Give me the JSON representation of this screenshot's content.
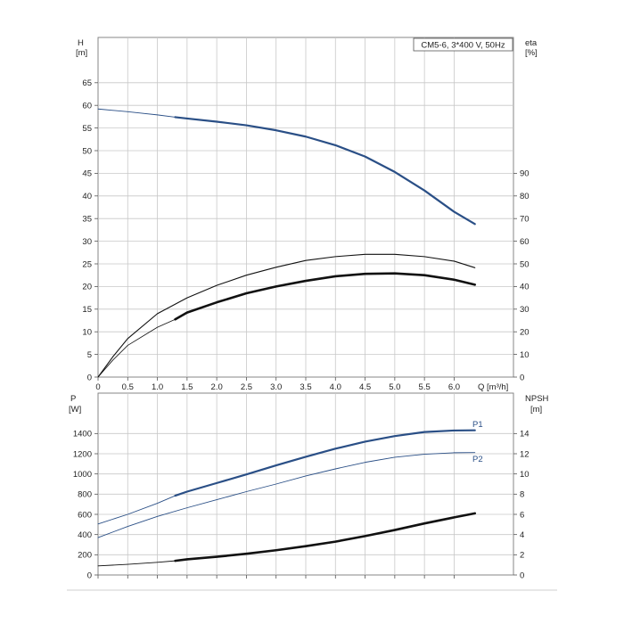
{
  "chart_data": [
    {
      "type": "line",
      "panel": "upper",
      "legend_title": "CM5-6, 3*400 V, 50Hz",
      "legend_position": "top-right",
      "grid": true,
      "x_axis": {
        "label": "Q [m³/h]",
        "range": [
          0,
          7.0
        ],
        "ticks": [
          0,
          0.5,
          1.0,
          1.5,
          2.0,
          2.5,
          3.0,
          3.5,
          4.0,
          4.5,
          5.0,
          5.5,
          6.0
        ],
        "tick_labels": [
          "0",
          "0.5",
          "1.0",
          "1.5",
          "2.0",
          "2.5",
          "3.0",
          "3.5",
          "4.0",
          "4.5",
          "5.0",
          "5.5",
          "6.0"
        ]
      },
      "y_left": {
        "name": "H",
        "unit": "[m]",
        "range": [
          0,
          75
        ],
        "ticks": [
          0,
          5,
          10,
          15,
          20,
          25,
          30,
          35,
          40,
          45,
          50,
          55,
          60,
          65
        ],
        "tick_labels": [
          "0",
          "5",
          "10",
          "15",
          "20",
          "25",
          "30",
          "35",
          "40",
          "45",
          "50",
          "55",
          "60",
          "65"
        ]
      },
      "y_right": {
        "name": "eta",
        "unit": "[%]",
        "range": [
          0,
          150
        ],
        "ticks": [
          0,
          10,
          20,
          30,
          40,
          50,
          60,
          70,
          80,
          90
        ],
        "tick_labels": [
          "0",
          "10",
          "20",
          "30",
          "40",
          "50",
          "60",
          "70",
          "80",
          "90"
        ]
      },
      "series": [
        {
          "axis": "left",
          "color": "#2a4f86",
          "width_thin": 0.9,
          "width_bold": 2.2,
          "bold_from": 1.3,
          "x": [
            0,
            0.5,
            1.0,
            1.3,
            1.5,
            2.0,
            2.5,
            3.0,
            3.5,
            4.0,
            4.5,
            5.0,
            5.5,
            6.0,
            6.35
          ],
          "y": [
            59.2,
            58.6,
            57.9,
            57.4,
            57.1,
            56.4,
            55.6,
            54.5,
            53.1,
            51.2,
            48.7,
            45.3,
            41.2,
            36.5,
            33.8
          ]
        },
        {
          "axis": "right",
          "color": "#111111",
          "width_thin": 1.1,
          "width_bold": 1.1,
          "bold_from": 0,
          "x": [
            0,
            0.25,
            0.5,
            1.0,
            1.5,
            2.0,
            2.5,
            3.0,
            3.5,
            4.0,
            4.5,
            5.0,
            5.5,
            6.0,
            6.35
          ],
          "y": [
            0,
            9,
            17,
            28,
            35,
            40.5,
            45,
            48.5,
            51.5,
            53.2,
            54.2,
            54.2,
            53.2,
            51.2,
            48.3
          ]
        },
        {
          "axis": "right",
          "color": "#111111",
          "width_thin": 0.8,
          "width_bold": 2.6,
          "bold_from": 1.3,
          "x": [
            0,
            0.25,
            0.5,
            1.0,
            1.3,
            1.5,
            2.0,
            2.5,
            3.0,
            3.5,
            4.0,
            4.5,
            5.0,
            5.5,
            6.0,
            6.35
          ],
          "y": [
            0,
            7.5,
            14,
            22,
            25.5,
            28.5,
            33,
            37,
            40,
            42.5,
            44.5,
            45.6,
            45.8,
            45,
            43,
            40.8
          ]
        }
      ]
    },
    {
      "type": "line",
      "panel": "lower",
      "grid": true,
      "x_axis": {
        "range": [
          0,
          7.0
        ]
      },
      "y_left": {
        "name": "P",
        "unit": "[W]",
        "range": [
          0,
          1800
        ],
        "ticks": [
          0,
          200,
          400,
          600,
          800,
          1000,
          1200,
          1400
        ],
        "tick_labels": [
          "0",
          "200",
          "400",
          "600",
          "800",
          "1000",
          "1200",
          "1400"
        ]
      },
      "y_right": {
        "name": "NPSH",
        "unit": "[m]",
        "range": [
          0,
          18
        ],
        "ticks": [
          0,
          2,
          4,
          6,
          8,
          10,
          12,
          14
        ],
        "tick_labels": [
          "0",
          "2",
          "4",
          "6",
          "8",
          "10",
          "12",
          "14"
        ]
      },
      "series": [
        {
          "name": "P1",
          "axis": "left",
          "color": "#2a4f86",
          "width_thin": 0.9,
          "width_bold": 2.2,
          "bold_from": 1.3,
          "x": [
            0,
            0.5,
            1.0,
            1.3,
            1.5,
            2.0,
            2.5,
            3.0,
            3.5,
            4.0,
            4.5,
            5.0,
            5.5,
            6.0,
            6.35
          ],
          "y": [
            505,
            600,
            710,
            785,
            825,
            910,
            995,
            1085,
            1170,
            1250,
            1320,
            1375,
            1415,
            1430,
            1432
          ]
        },
        {
          "name": "P2",
          "axis": "left",
          "color": "#2a4f86",
          "width_thin": 0.9,
          "width_bold": 0.9,
          "bold_from": 0,
          "x": [
            0,
            0.5,
            1.0,
            1.5,
            2.0,
            2.5,
            3.0,
            3.5,
            4.0,
            4.5,
            5.0,
            5.5,
            6.0,
            6.35
          ],
          "y": [
            370,
            480,
            580,
            665,
            745,
            825,
            900,
            980,
            1050,
            1115,
            1165,
            1195,
            1210,
            1212
          ]
        },
        {
          "axis": "right",
          "color": "#111111",
          "width_thin": 0.9,
          "width_bold": 2.6,
          "bold_from": 1.3,
          "x": [
            0,
            0.5,
            1.0,
            1.3,
            1.5,
            2.0,
            2.5,
            3.0,
            3.5,
            4.0,
            4.5,
            5.0,
            5.5,
            6.0,
            6.35
          ],
          "y": [
            0.9,
            1.05,
            1.25,
            1.4,
            1.55,
            1.8,
            2.1,
            2.45,
            2.85,
            3.3,
            3.85,
            4.45,
            5.1,
            5.7,
            6.1
          ]
        }
      ]
    }
  ]
}
